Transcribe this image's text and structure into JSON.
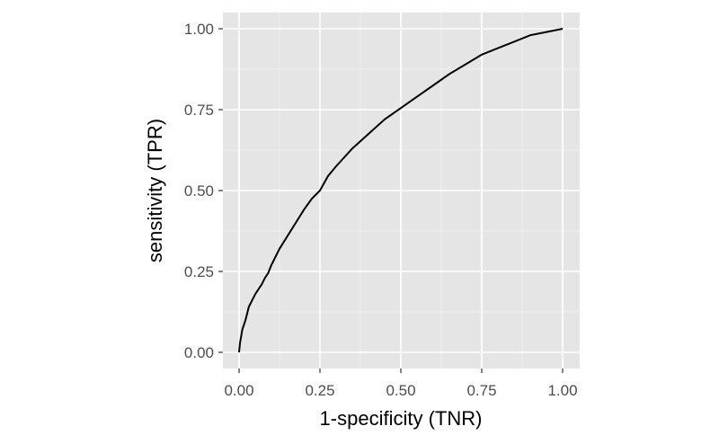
{
  "chart_data": {
    "type": "line",
    "title": "",
    "xlabel": "1-specificity (TNR)",
    "ylabel": "sensitivity (TPR)",
    "xlim": [
      0,
      1
    ],
    "ylim": [
      0,
      1
    ],
    "x_ticks": [
      "0.00",
      "0.25",
      "0.50",
      "0.75",
      "1.00"
    ],
    "y_ticks": [
      "0.00",
      "0.25",
      "0.50",
      "0.75",
      "1.00"
    ],
    "grid": true,
    "legend": "none",
    "colors": {
      "panel_background": "#e5e5e5",
      "grid_major": "#ffffff",
      "grid_minor": "#f2f2f2",
      "line": "#000000",
      "tick_text": "#4d4d4d"
    },
    "series": [
      {
        "x": [
          0.0,
          0.003,
          0.01,
          0.02,
          0.03,
          0.05,
          0.07,
          0.08,
          0.09,
          0.1,
          0.125,
          0.15,
          0.175,
          0.2,
          0.225,
          0.25,
          0.275,
          0.3,
          0.35,
          0.4,
          0.45,
          0.5,
          0.55,
          0.6,
          0.65,
          0.7,
          0.75,
          0.8,
          0.85,
          0.9,
          0.95,
          1.0
        ],
        "y": [
          0.0,
          0.03,
          0.07,
          0.1,
          0.14,
          0.18,
          0.21,
          0.23,
          0.245,
          0.27,
          0.32,
          0.36,
          0.4,
          0.44,
          0.475,
          0.5,
          0.545,
          0.575,
          0.63,
          0.675,
          0.72,
          0.755,
          0.79,
          0.825,
          0.86,
          0.89,
          0.92,
          0.94,
          0.96,
          0.98,
          0.99,
          1.0
        ]
      }
    ]
  }
}
